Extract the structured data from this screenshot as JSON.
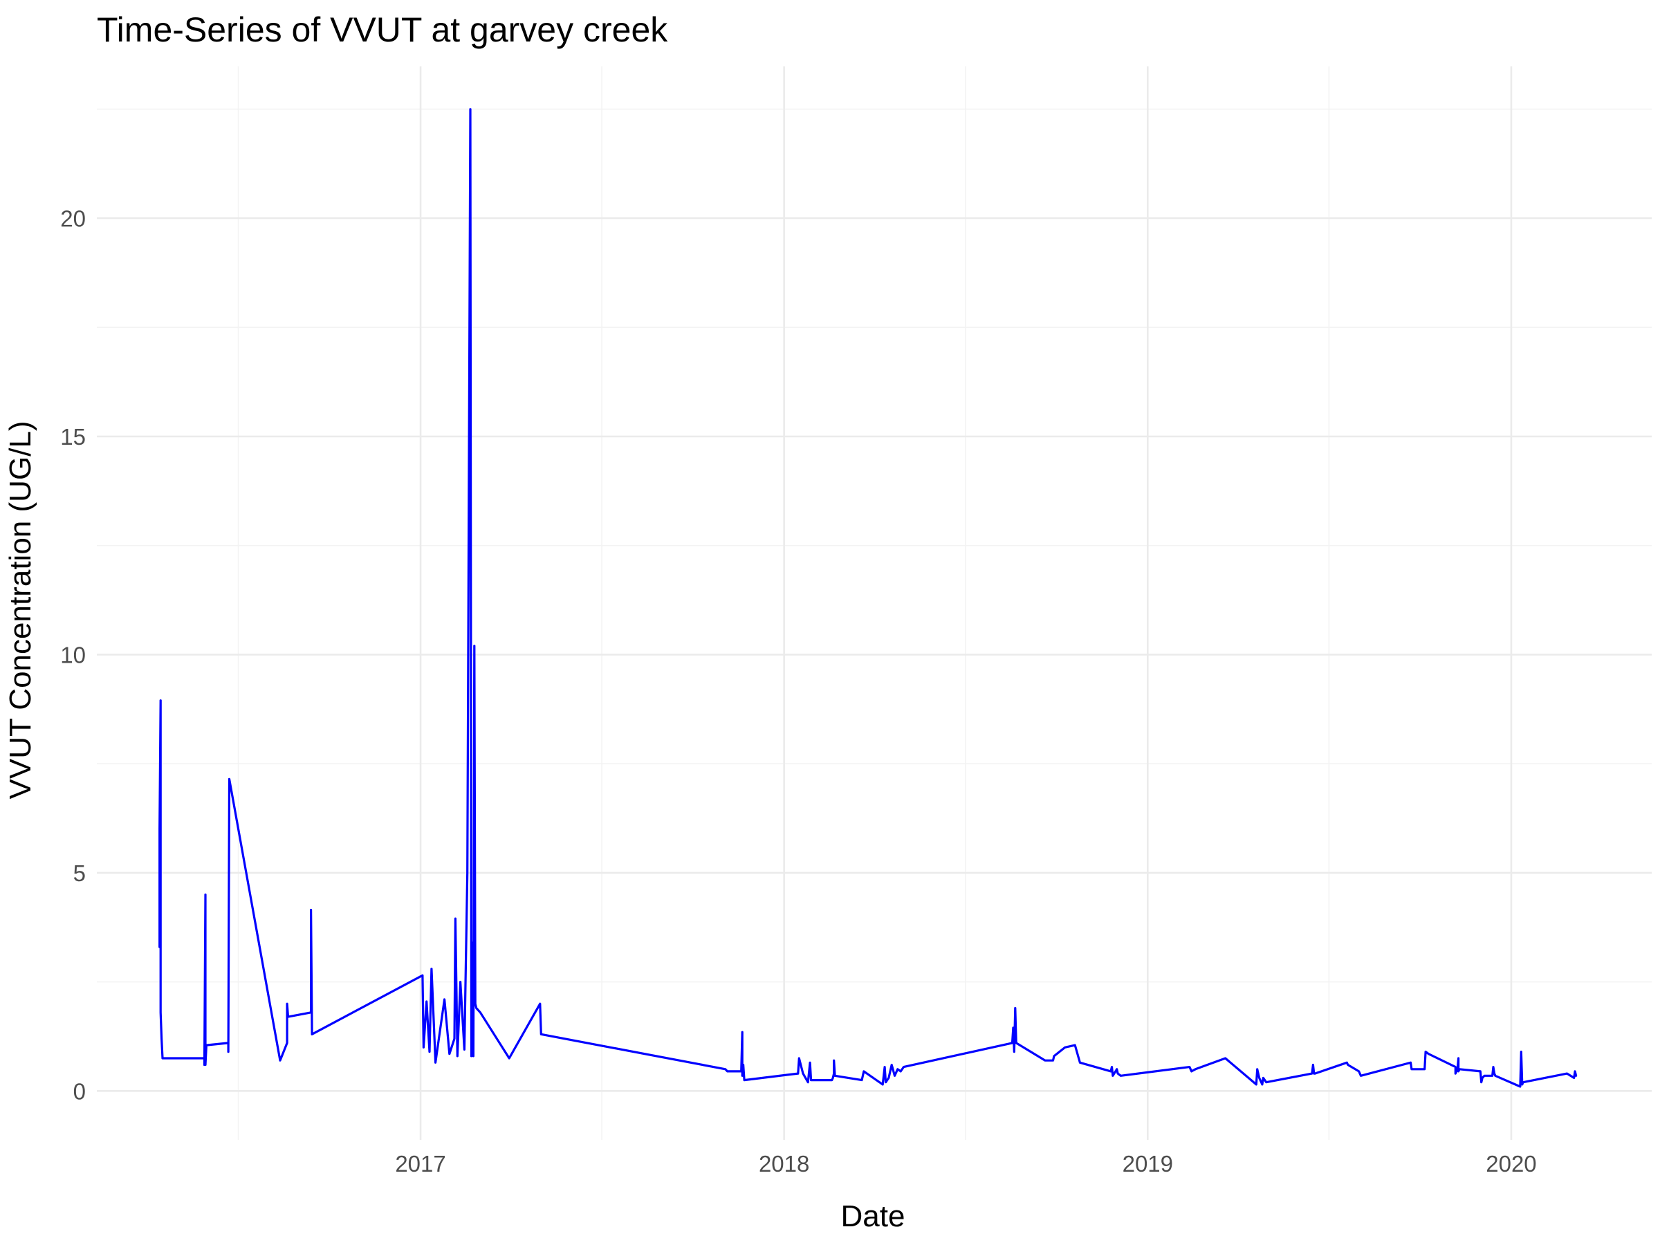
{
  "chart_data": {
    "type": "line",
    "title": "Time-Series of VVUT at garvey creek",
    "xlabel": "Date",
    "ylabel": "VVUT Concentration (UG/L)",
    "xlim": [
      "2016-02-11",
      "2020-05-21"
    ],
    "ylim": [
      -1.12,
      23.48
    ],
    "x_ticks": [
      "2017",
      "2018",
      "2019",
      "2020"
    ],
    "x_tick_dates": [
      "2017-01-01",
      "2018-01-01",
      "2019-01-01",
      "2020-01-01"
    ],
    "y_ticks": [
      0,
      5,
      10,
      15,
      20
    ],
    "grid": true,
    "legend": "none",
    "line_color": "#0000ff",
    "series": [
      {
        "x": [
          "2016-04-14",
          "2016-04-14",
          "2016-04-15",
          "2016-04-15",
          "2016-04-15",
          "2016-04-16",
          "2016-04-17",
          "2016-05-29",
          "2016-05-29",
          "2016-05-30",
          "2016-05-30",
          "2016-05-31",
          "2016-06-22",
          "2016-06-22",
          "2016-06-23",
          "2016-08-13",
          "2016-08-20",
          "2016-08-20",
          "2016-08-21",
          "2016-09-13",
          "2016-09-13",
          "2016-09-14",
          "2017-01-03",
          "2017-01-04",
          "2017-01-07",
          "2017-01-10",
          "2017-01-12",
          "2017-01-16",
          "2017-01-20",
          "2017-01-25",
          "2017-01-30",
          "2017-02-04",
          "2017-02-05",
          "2017-02-07",
          "2017-02-10",
          "2017-02-14",
          "2017-02-17",
          "2017-02-20",
          "2017-02-21",
          "2017-02-22",
          "2017-02-22",
          "2017-02-23",
          "2017-02-24",
          "2017-02-25",
          "2017-02-26",
          "2017-03-02",
          "2017-03-31",
          "2017-05-01",
          "2017-05-02",
          "2017-11-03",
          "2017-11-05",
          "2017-11-19",
          "2017-11-20",
          "2017-11-20",
          "2017-11-21",
          "2017-11-22",
          "2018-01-15",
          "2018-01-16",
          "2018-01-20",
          "2018-01-25",
          "2018-01-27",
          "2018-01-28",
          "2018-02-18",
          "2018-02-19",
          "2018-02-20",
          "2018-02-20",
          "2018-02-21",
          "2018-03-20",
          "2018-03-22",
          "2018-04-10",
          "2018-04-12",
          "2018-04-13",
          "2018-04-16",
          "2018-04-19",
          "2018-04-22",
          "2018-04-25",
          "2018-04-28",
          "2018-05-01",
          "2018-08-18",
          "2018-08-19",
          "2018-08-20",
          "2018-08-21",
          "2018-08-22",
          "2018-09-20",
          "2018-09-28",
          "2018-09-29",
          "2018-10-10",
          "2018-10-20",
          "2018-10-25",
          "2018-11-25",
          "2018-11-26",
          "2018-11-27",
          "2018-12-01",
          "2018-12-02",
          "2018-12-05",
          "2019-02-12",
          "2019-02-14",
          "2019-02-18",
          "2019-03-20",
          "2019-04-20",
          "2019-04-21",
          "2019-04-23",
          "2019-04-26",
          "2019-04-27",
          "2019-04-30",
          "2019-06-15",
          "2019-06-16",
          "2019-06-17",
          "2019-06-18",
          "2019-07-20",
          "2019-07-21",
          "2019-08-01",
          "2019-08-03",
          "2019-09-22",
          "2019-09-23",
          "2019-10-06",
          "2019-10-07",
          "2019-10-10",
          "2019-11-06",
          "2019-11-06",
          "2019-11-08",
          "2019-11-09",
          "2019-11-09",
          "2019-11-10",
          "2019-12-01",
          "2019-12-02",
          "2019-12-03",
          "2019-12-05",
          "2019-12-13",
          "2019-12-14",
          "2019-12-15",
          "2019-12-16",
          "2020-01-10",
          "2020-01-11",
          "2020-01-12",
          "2020-01-13",
          "2020-02-26",
          "2020-03-04",
          "2020-03-05",
          "2020-03-06"
        ],
        "y": [
          3.3,
          6.0,
          8.95,
          5.0,
          1.8,
          1.2,
          0.75,
          0.75,
          0.6,
          4.5,
          0.6,
          1.05,
          1.1,
          0.9,
          7.15,
          0.7,
          1.1,
          2.0,
          1.7,
          1.8,
          4.15,
          1.3,
          2.65,
          1.0,
          2.05,
          0.9,
          2.8,
          0.65,
          1.3,
          2.1,
          0.85,
          1.2,
          3.95,
          0.8,
          2.5,
          0.95,
          5.0,
          22.5,
          0.8,
          3.4,
          1.3,
          0.8,
          10.2,
          2.0,
          1.9,
          1.8,
          0.75,
          2.0,
          1.3,
          0.5,
          0.45,
          0.45,
          1.35,
          0.35,
          0.6,
          0.25,
          0.4,
          0.75,
          0.4,
          0.2,
          0.65,
          0.25,
          0.25,
          0.3,
          0.4,
          0.7,
          0.35,
          0.25,
          0.45,
          0.15,
          0.55,
          0.2,
          0.3,
          0.6,
          0.35,
          0.5,
          0.45,
          0.55,
          1.1,
          1.45,
          0.9,
          1.9,
          1.1,
          0.7,
          0.7,
          0.8,
          1.0,
          1.05,
          0.65,
          0.45,
          0.55,
          0.35,
          0.5,
          0.4,
          0.35,
          0.55,
          0.45,
          0.5,
          0.75,
          0.15,
          0.5,
          0.3,
          0.15,
          0.3,
          0.2,
          0.4,
          0.6,
          0.4,
          0.4,
          0.65,
          0.6,
          0.45,
          0.35,
          0.65,
          0.5,
          0.5,
          0.9,
          0.85,
          0.55,
          0.4,
          0.5,
          0.75,
          0.45,
          0.5,
          0.45,
          0.2,
          0.3,
          0.35,
          0.35,
          0.55,
          0.4,
          0.35,
          0.1,
          0.9,
          0.15,
          0.2,
          0.4,
          0.3,
          0.45,
          0.35
        ]
      }
    ]
  }
}
